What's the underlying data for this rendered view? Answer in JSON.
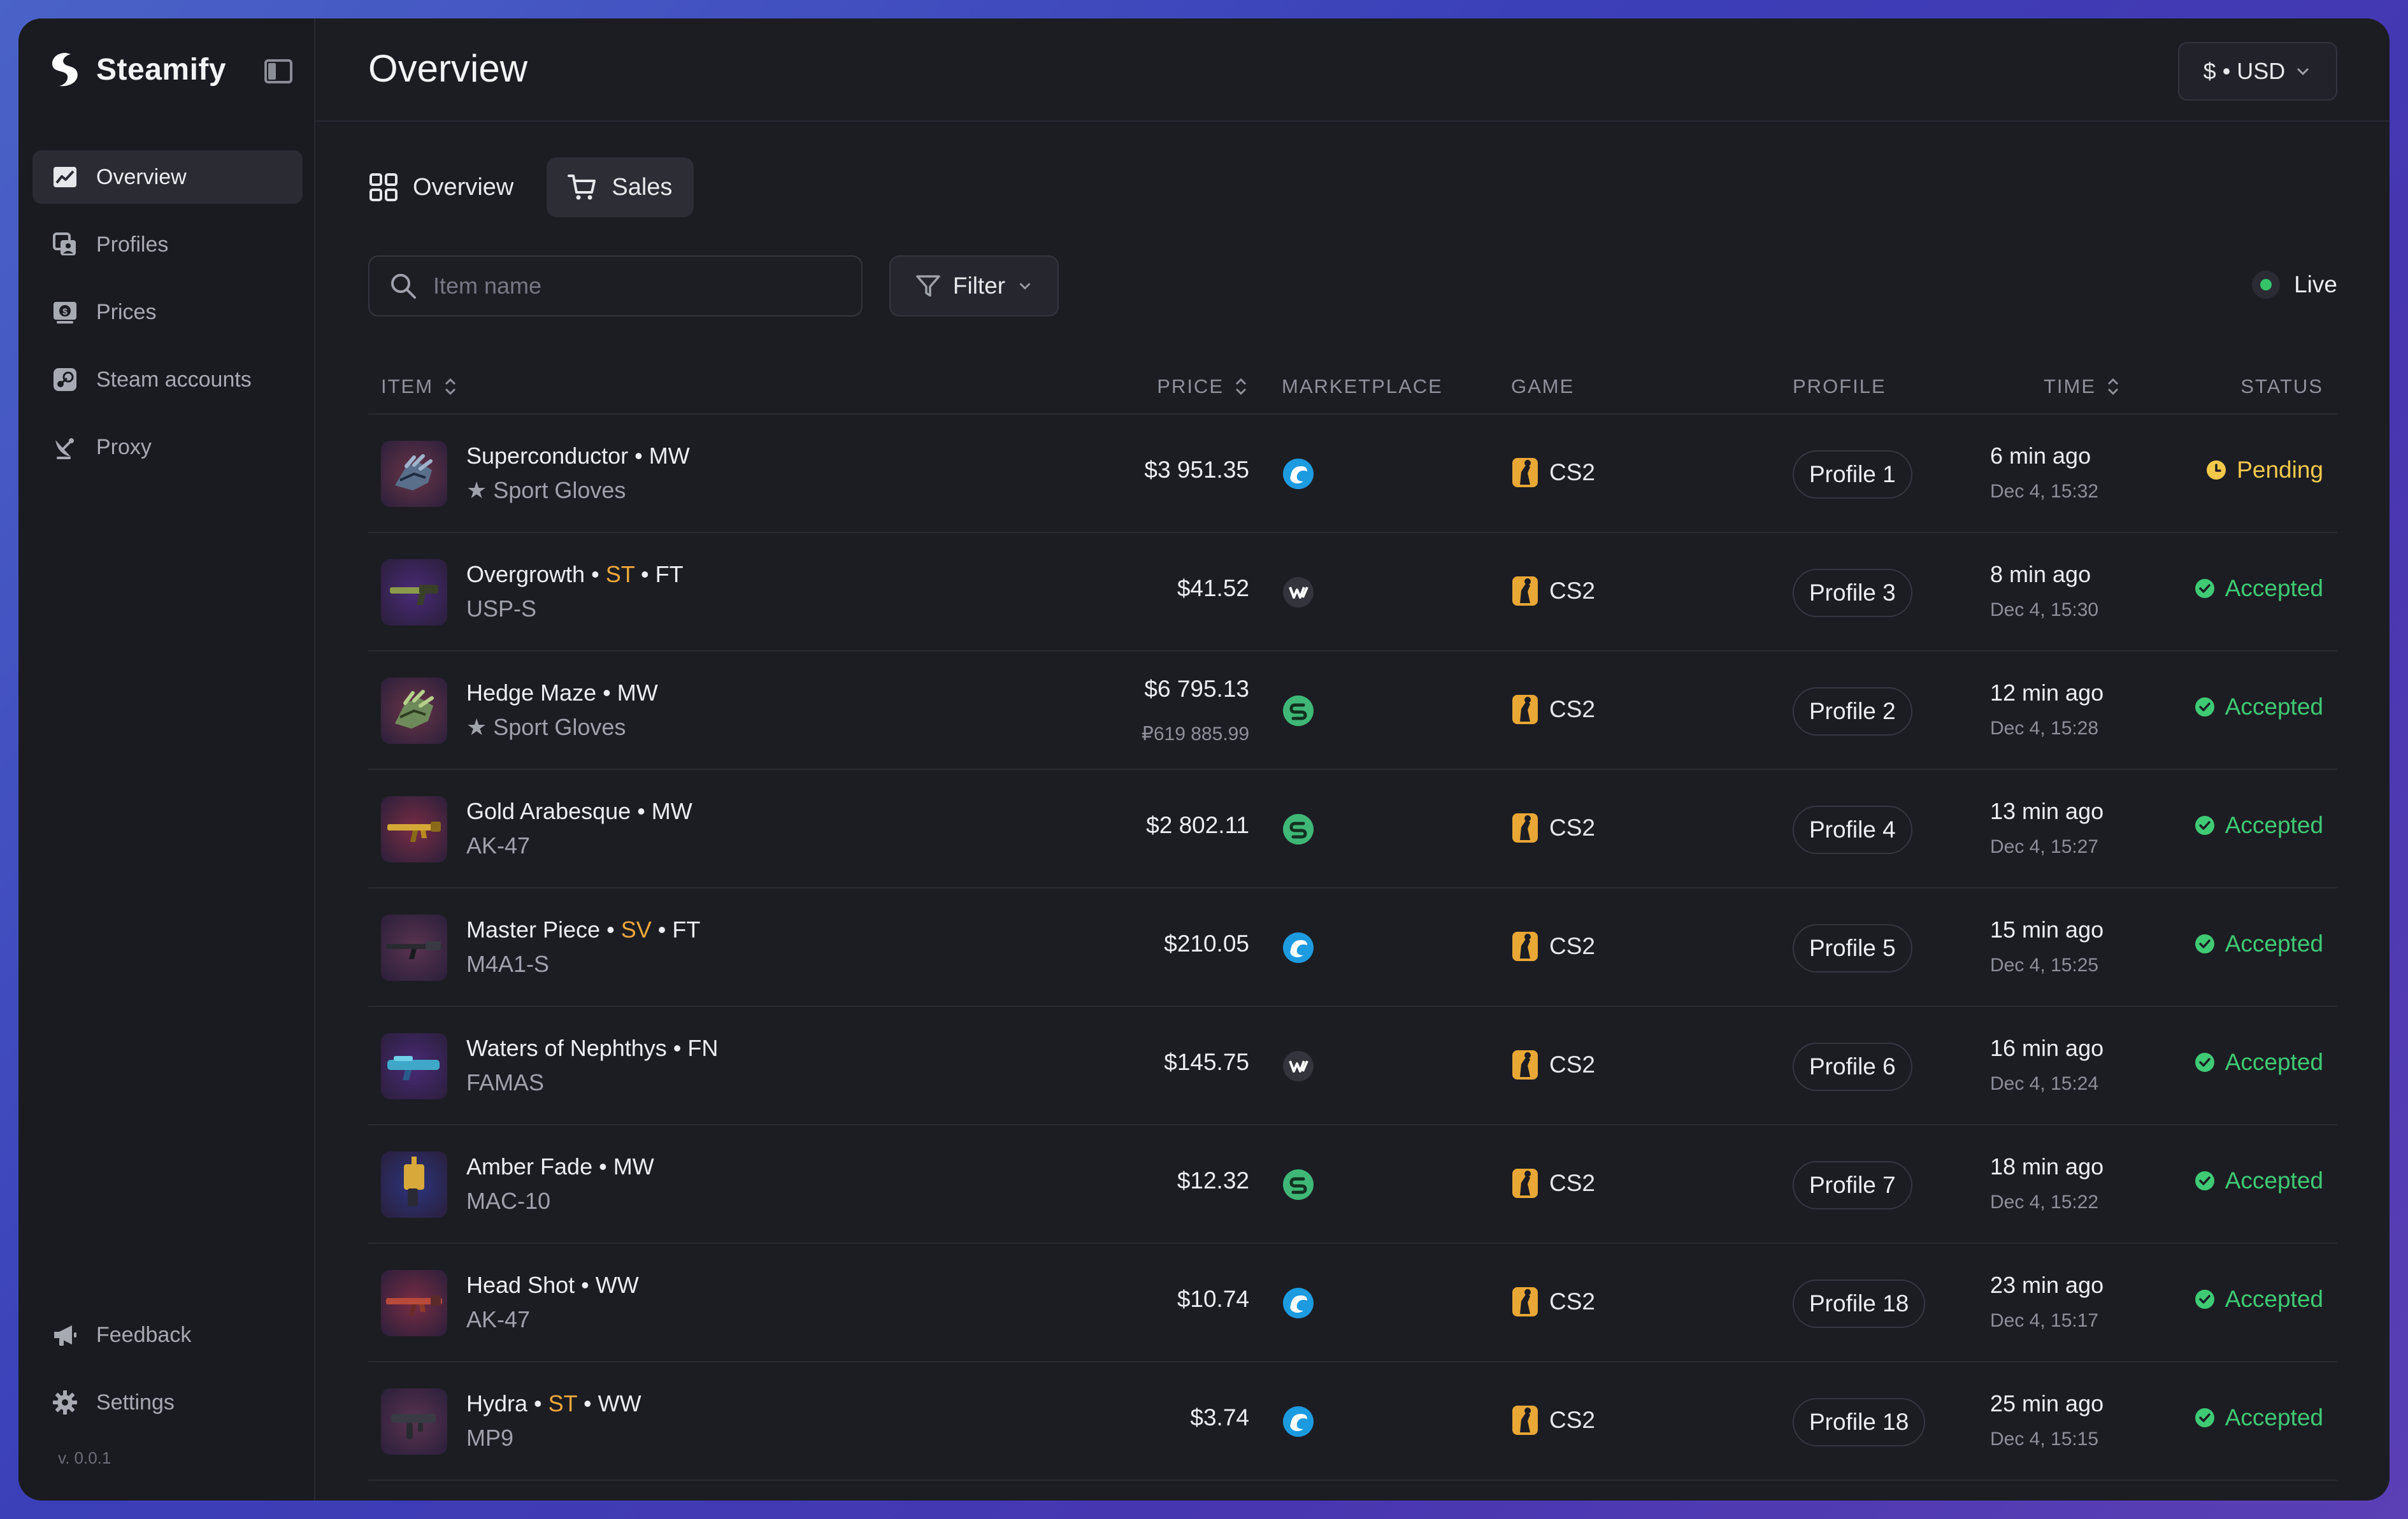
{
  "app": {
    "name": "Steamify",
    "version": "v. 0.0.1"
  },
  "sidebar": {
    "items": [
      {
        "label": "Overview",
        "icon": "chart-icon",
        "active": true
      },
      {
        "label": "Profiles",
        "icon": "profiles-icon",
        "active": false
      },
      {
        "label": "Prices",
        "icon": "price-tag-icon",
        "active": false
      },
      {
        "label": "Steam accounts",
        "icon": "steam-icon",
        "active": false
      },
      {
        "label": "Proxy",
        "icon": "satellite-dish-icon",
        "active": false
      }
    ],
    "bottom_items": [
      {
        "label": "Feedback",
        "icon": "megaphone-icon"
      },
      {
        "label": "Settings",
        "icon": "gear-icon"
      }
    ]
  },
  "header": {
    "title": "Overview",
    "currency": "$ • USD"
  },
  "tabs": [
    {
      "label": "Overview",
      "icon": "grid-icon",
      "active": false
    },
    {
      "label": "Sales",
      "icon": "cart-icon",
      "active": true
    }
  ],
  "toolbar": {
    "search_placeholder": "Item name",
    "search_value": "",
    "filter_label": "Filter",
    "live_label": "Live"
  },
  "table": {
    "columns": {
      "item": "ITEM",
      "price": "PRICE",
      "marketplace": "MARKETPLACE",
      "game": "GAME",
      "profile": "PROFILE",
      "time": "TIME",
      "status": "STATUS"
    },
    "rows": [
      {
        "name": "Superconductor",
        "st": "",
        "wear": "MW",
        "sub": "★ Sport Gloves",
        "price": "$3 951.35",
        "price_sub": "",
        "marketplace": "blue-swirl-icon",
        "game": "CS2",
        "profile": "Profile 1",
        "time": "6 min ago",
        "date": "Dec 4, 15:32",
        "status": "Pending",
        "thumb": "gloves",
        "thumb_bg": "#6a3548"
      },
      {
        "name": "Overgrowth",
        "st": "ST",
        "wear": "FT",
        "sub": "USP-S",
        "price": "$41.52",
        "price_sub": "",
        "marketplace": "wax-icon",
        "game": "CS2",
        "profile": "Profile 3",
        "time": "8 min ago",
        "date": "Dec 4, 15:30",
        "status": "Accepted",
        "thumb": "pistol",
        "thumb_bg": "#4a2a78"
      },
      {
        "name": "Hedge Maze",
        "st": "",
        "wear": "MW",
        "sub": "★ Sport Gloves",
        "price": "$6 795.13",
        "price_sub": "₽619 885.99",
        "marketplace": "green-s-icon",
        "game": "CS2",
        "profile": "Profile 2",
        "time": "12 min ago",
        "date": "Dec 4, 15:28",
        "status": "Accepted",
        "thumb": "gloves-green",
        "thumb_bg": "#6a3548"
      },
      {
        "name": "Gold Arabesque",
        "st": "",
        "wear": "MW",
        "sub": "AK-47",
        "price": "$2 802.11",
        "price_sub": "",
        "marketplace": "green-s-icon",
        "game": "CS2",
        "profile": "Profile 4",
        "time": "13 min ago",
        "date": "Dec 4, 15:27",
        "status": "Accepted",
        "thumb": "rifle-gold",
        "thumb_bg": "#7a2c44"
      },
      {
        "name": "Master Piece",
        "st": "SV",
        "wear": "FT",
        "sub": "M4A1-S",
        "price": "$210.05",
        "price_sub": "",
        "marketplace": "blue-swirl-icon",
        "game": "CS2",
        "profile": "Profile 5",
        "time": "15 min ago",
        "date": "Dec 4, 15:25",
        "status": "Accepted",
        "thumb": "rifle-dark",
        "thumb_bg": "#5a3450"
      },
      {
        "name": "Waters of Nephthys",
        "st": "",
        "wear": "FN",
        "sub": "FAMAS",
        "price": "$145.75",
        "price_sub": "",
        "marketplace": "wax-icon",
        "game": "CS2",
        "profile": "Profile 6",
        "time": "16 min ago",
        "date": "Dec 4, 15:24",
        "status": "Accepted",
        "thumb": "famas",
        "thumb_bg": "#4a2a78"
      },
      {
        "name": "Amber Fade",
        "st": "",
        "wear": "MW",
        "sub": "MAC-10",
        "price": "$12.32",
        "price_sub": "",
        "marketplace": "green-s-icon",
        "game": "CS2",
        "profile": "Profile 7",
        "time": "18 min ago",
        "date": "Dec 4, 15:22",
        "status": "Accepted",
        "thumb": "smg-amber",
        "thumb_bg": "#2c3580"
      },
      {
        "name": "Head Shot",
        "st": "",
        "wear": "WW",
        "sub": "AK-47",
        "price": "$10.74",
        "price_sub": "",
        "marketplace": "blue-swirl-icon",
        "game": "CS2",
        "profile": "Profile 18",
        "time": "23 min ago",
        "date": "Dec 4, 15:17",
        "status": "Accepted",
        "thumb": "rifle-red",
        "thumb_bg": "#7a2c44"
      },
      {
        "name": "Hydra",
        "st": "ST",
        "wear": "WW",
        "sub": "MP9",
        "price": "$3.74",
        "price_sub": "",
        "marketplace": "blue-swirl-icon",
        "game": "CS2",
        "profile": "Profile 18",
        "time": "25 min ago",
        "date": "Dec 4, 15:15",
        "status": "Accepted",
        "thumb": "smg-dark",
        "thumb_bg": "#5a3450"
      }
    ]
  },
  "colors": {
    "accepted": "#3fca74",
    "pending": "#f3c94b",
    "stattrak": "#f0a93b",
    "live": "#36c46a"
  }
}
